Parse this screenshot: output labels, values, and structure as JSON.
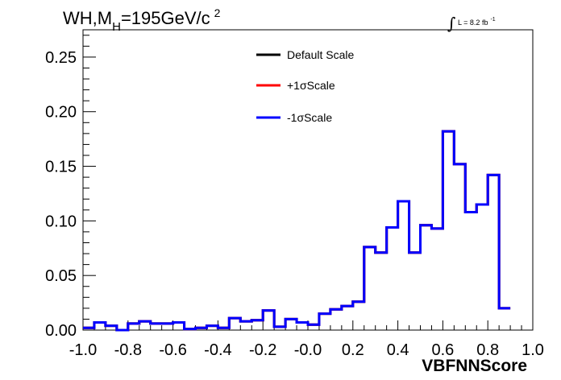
{
  "chart_data": {
    "type": "histogram",
    "title": {
      "main": "WH,M",
      "subscript": "H",
      "rest": "=195GeV/c",
      "superscript": "2"
    },
    "luminosity": {
      "integral_symbol": "∫",
      "text": "L = 8.2 fb",
      "superscript": "-1"
    },
    "xlabel": "VBFNNScore",
    "ylabel": "",
    "xlim": [
      -1.0,
      1.0
    ],
    "ylim": [
      0,
      0.275
    ],
    "x_ticks": [
      "-1.0",
      "-0.8",
      "-0.6",
      "-0.4",
      "-0.2",
      "-0.0",
      "0.2",
      "0.4",
      "0.6",
      "0.8",
      "1.0"
    ],
    "y_ticks": [
      "0.00",
      "0.05",
      "0.10",
      "0.15",
      "0.20",
      "0.25"
    ],
    "legend_position": "top-center",
    "bin_edges_start": -1.0,
    "bin_width": 0.05,
    "series": [
      {
        "name": "Default Scale",
        "color": "#000000",
        "values": [
          0.002,
          0.007,
          0.004,
          0.0,
          0.006,
          0.008,
          0.006,
          0.006,
          0.007,
          0.001,
          0.002,
          0.004,
          0.002,
          0.011,
          0.008,
          0.009,
          0.018,
          0.003,
          0.01,
          0.007,
          0.005,
          0.015,
          0.019,
          0.022,
          0.026,
          0.076,
          0.071,
          0.094,
          0.118,
          0.071,
          0.096,
          0.093,
          0.182,
          0.152,
          0.108,
          0.115,
          0.142,
          0.02
        ]
      },
      {
        "name": "+1σScale",
        "color": "#ff0000",
        "values": [
          0.002,
          0.007,
          0.004,
          0.0,
          0.006,
          0.008,
          0.006,
          0.006,
          0.007,
          0.001,
          0.002,
          0.004,
          0.002,
          0.011,
          0.008,
          0.009,
          0.018,
          0.003,
          0.01,
          0.007,
          0.005,
          0.015,
          0.019,
          0.022,
          0.026,
          0.076,
          0.071,
          0.094,
          0.118,
          0.071,
          0.096,
          0.093,
          0.182,
          0.152,
          0.108,
          0.115,
          0.142,
          0.02
        ]
      },
      {
        "name": "-1σScale",
        "color": "#0000ff",
        "values": [
          0.002,
          0.007,
          0.004,
          0.0,
          0.006,
          0.008,
          0.006,
          0.006,
          0.007,
          0.001,
          0.002,
          0.004,
          0.002,
          0.011,
          0.008,
          0.009,
          0.018,
          0.003,
          0.01,
          0.007,
          0.005,
          0.015,
          0.019,
          0.022,
          0.026,
          0.076,
          0.071,
          0.094,
          0.118,
          0.071,
          0.096,
          0.093,
          0.182,
          0.152,
          0.108,
          0.115,
          0.142,
          0.02
        ]
      }
    ]
  }
}
